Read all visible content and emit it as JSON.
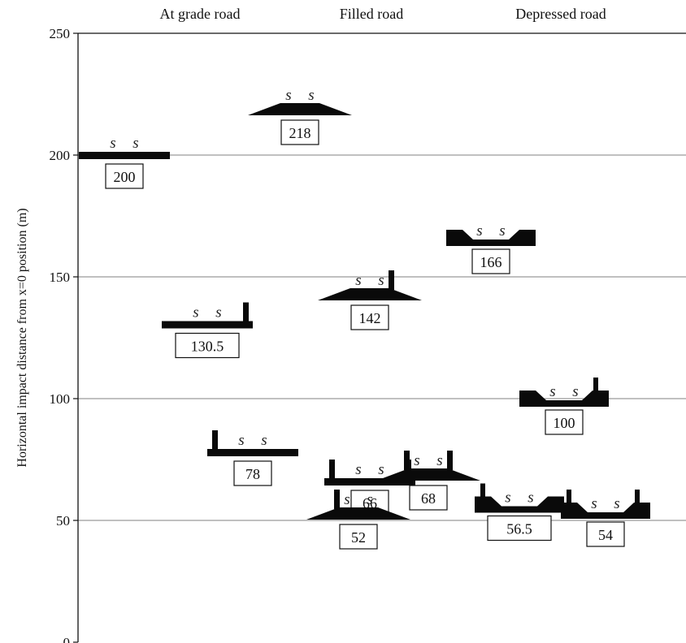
{
  "chart_data": {
    "type": "scatter",
    "title": "",
    "xlabel": "",
    "ylabel": "Horizontal impact distance from x=0 position (m)",
    "ylim": [
      0,
      250
    ],
    "yticks": [
      0,
      50,
      100,
      150,
      200,
      250
    ],
    "grid": true,
    "groups": [
      "At grade road",
      "Filled road",
      "Depressed road"
    ],
    "series": [
      {
        "points": [
          {
            "group": "At grade road",
            "value": 200,
            "label": "200",
            "profile": "flat",
            "barriers": "none"
          },
          {
            "group": "At grade road",
            "value": 130.5,
            "label": "130.5",
            "profile": "flat",
            "barriers": "right"
          },
          {
            "group": "At grade road",
            "value": 78,
            "label": "78",
            "profile": "flat",
            "barriers": "left"
          },
          {
            "group": "At grade road",
            "value": 66,
            "label": "66",
            "profile": "flat",
            "barriers": "both"
          },
          {
            "group": "Filled road",
            "value": 218,
            "label": "218",
            "profile": "filled",
            "barriers": "none"
          },
          {
            "group": "Filled road",
            "value": 142,
            "label": "142",
            "profile": "filled",
            "barriers": "right"
          },
          {
            "group": "Filled road",
            "value": 52,
            "label": "52",
            "profile": "filled",
            "barriers": "left"
          },
          {
            "group": "Filled road",
            "value": 68,
            "label": "68",
            "profile": "filled",
            "barriers": "both"
          },
          {
            "group": "Depressed road",
            "value": 166,
            "label": "166",
            "profile": "depressed",
            "barriers": "none"
          },
          {
            "group": "Depressed road",
            "value": 100,
            "label": "100",
            "profile": "depressed",
            "barriers": "right"
          },
          {
            "group": "Depressed road",
            "value": 56.5,
            "label": "56.5",
            "profile": "depressed",
            "barriers": "left"
          },
          {
            "group": "Depressed road",
            "value": 54,
            "label": "54",
            "profile": "depressed",
            "barriers": "both"
          }
        ]
      }
    ],
    "source_symbol": "s"
  }
}
